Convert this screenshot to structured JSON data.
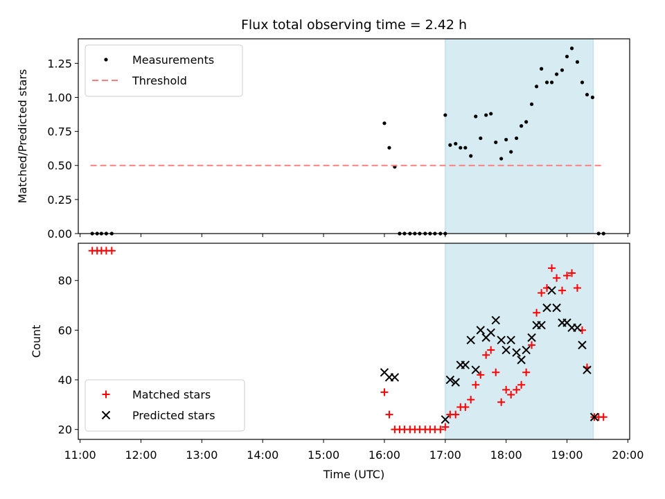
{
  "chart_data": {
    "type": "scatter",
    "title": "Flux total observing time = 2.42 h",
    "xlabel": "Time (UTC)",
    "x_tick_labels": [
      "11:00",
      "12:00",
      "13:00",
      "14:00",
      "15:00",
      "16:00",
      "17:00",
      "18:00",
      "19:00",
      "20:00"
    ],
    "x_ticks_hours": [
      11,
      12,
      13,
      14,
      15,
      16,
      17,
      18,
      19,
      20
    ],
    "xlim_hours": [
      10.97,
      20.03
    ],
    "shaded_span_hours": [
      17.0,
      19.43
    ],
    "shade_color": "#add8e6",
    "panels": [
      {
        "ylabel": "Matched/Predicted stars",
        "ylim": [
          0,
          1.43
        ],
        "y_ticks": [
          0.0,
          0.25,
          0.5,
          0.75,
          1.0,
          1.25
        ],
        "y_tick_labels": [
          "0.00",
          "0.25",
          "0.50",
          "0.75",
          "1.00",
          "1.25"
        ],
        "legend": {
          "position": "upper-left",
          "entries": [
            "Measurements",
            "Threshold"
          ]
        },
        "series": [
          {
            "name": "Measurements",
            "marker": "dot",
            "color": "#000000",
            "points": [
              [
                11.2,
                0
              ],
              [
                11.28,
                0
              ],
              [
                11.35,
                0
              ],
              [
                11.43,
                0
              ],
              [
                11.52,
                0
              ],
              [
                16.0,
                0.81
              ],
              [
                16.08,
                0.63
              ],
              [
                16.17,
                0.49
              ],
              [
                16.25,
                0
              ],
              [
                16.33,
                0
              ],
              [
                16.42,
                0
              ],
              [
                16.5,
                0
              ],
              [
                16.58,
                0
              ],
              [
                16.67,
                0
              ],
              [
                16.75,
                0
              ],
              [
                16.83,
                0
              ],
              [
                16.92,
                0
              ],
              [
                17.0,
                0
              ],
              [
                17.0,
                0.87
              ],
              [
                17.08,
                0.65
              ],
              [
                17.17,
                0.66
              ],
              [
                17.25,
                0.63
              ],
              [
                17.33,
                0.63
              ],
              [
                17.42,
                0.57
              ],
              [
                17.5,
                0.86
              ],
              [
                17.58,
                0.7
              ],
              [
                17.67,
                0.87
              ],
              [
                17.75,
                0.88
              ],
              [
                17.83,
                0.67
              ],
              [
                17.92,
                0.55
              ],
              [
                18.0,
                0.69
              ],
              [
                18.08,
                0.6
              ],
              [
                18.17,
                0.7
              ],
              [
                18.25,
                0.79
              ],
              [
                18.33,
                0.82
              ],
              [
                18.42,
                0.95
              ],
              [
                18.5,
                1.08
              ],
              [
                18.58,
                1.21
              ],
              [
                18.67,
                1.11
              ],
              [
                18.75,
                1.11
              ],
              [
                18.83,
                1.17
              ],
              [
                18.92,
                1.2
              ],
              [
                19.0,
                1.3
              ],
              [
                19.08,
                1.36
              ],
              [
                19.17,
                1.26
              ],
              [
                19.25,
                1.11
              ],
              [
                19.33,
                1.02
              ],
              [
                19.42,
                1.0
              ],
              [
                19.52,
                0
              ],
              [
                19.6,
                0
              ]
            ]
          },
          {
            "name": "Threshold",
            "marker": "dashed-line",
            "color": "#ff7f7f",
            "points": [
              [
                11.17,
                0.5
              ],
              [
                19.6,
                0.5
              ]
            ]
          }
        ]
      },
      {
        "ylabel": "Count",
        "ylim": [
          16,
          95
        ],
        "y_ticks": [
          20,
          40,
          60,
          80
        ],
        "y_tick_labels": [
          "20",
          "40",
          "60",
          "80"
        ],
        "legend": {
          "position": "lower-left",
          "entries": [
            "Matched stars",
            "Predicted stars"
          ]
        },
        "series": [
          {
            "name": "Matched stars",
            "marker": "plus",
            "color": "#ff0000",
            "points": [
              [
                11.2,
                92
              ],
              [
                11.28,
                92
              ],
              [
                11.35,
                92
              ],
              [
                11.43,
                92
              ],
              [
                11.52,
                92
              ],
              [
                16.0,
                35
              ],
              [
                16.08,
                26
              ],
              [
                16.17,
                20
              ],
              [
                16.25,
                20
              ],
              [
                16.33,
                20
              ],
              [
                16.42,
                20
              ],
              [
                16.5,
                20
              ],
              [
                16.58,
                20
              ],
              [
                16.67,
                20
              ],
              [
                16.75,
                20
              ],
              [
                16.83,
                20
              ],
              [
                16.92,
                20
              ],
              [
                17.0,
                21
              ],
              [
                17.08,
                26
              ],
              [
                17.17,
                26
              ],
              [
                17.25,
                29
              ],
              [
                17.33,
                29
              ],
              [
                17.42,
                32
              ],
              [
                17.5,
                38
              ],
              [
                17.58,
                42
              ],
              [
                17.67,
                50
              ],
              [
                17.75,
                52
              ],
              [
                17.83,
                43
              ],
              [
                17.92,
                31
              ],
              [
                18.0,
                36
              ],
              [
                18.08,
                34
              ],
              [
                18.17,
                36
              ],
              [
                18.25,
                38
              ],
              [
                18.33,
                43
              ],
              [
                18.42,
                54
              ],
              [
                18.5,
                67
              ],
              [
                18.58,
                75
              ],
              [
                18.67,
                77
              ],
              [
                18.75,
                85
              ],
              [
                18.83,
                81
              ],
              [
                18.92,
                76
              ],
              [
                19.0,
                82
              ],
              [
                19.08,
                83
              ],
              [
                19.17,
                77
              ],
              [
                19.25,
                60
              ],
              [
                19.33,
                45
              ],
              [
                19.45,
                25
              ],
              [
                19.52,
                25
              ],
              [
                19.6,
                25
              ]
            ]
          },
          {
            "name": "Predicted stars",
            "marker": "x",
            "color": "#000000",
            "points": [
              [
                16.0,
                43
              ],
              [
                16.08,
                41
              ],
              [
                16.17,
                41
              ],
              [
                17.0,
                24
              ],
              [
                17.08,
                40
              ],
              [
                17.17,
                39
              ],
              [
                17.25,
                46
              ],
              [
                17.33,
                46
              ],
              [
                17.42,
                56
              ],
              [
                17.5,
                44
              ],
              [
                17.58,
                60
              ],
              [
                17.67,
                57
              ],
              [
                17.75,
                59
              ],
              [
                17.83,
                64
              ],
              [
                17.92,
                56
              ],
              [
                18.0,
                52
              ],
              [
                18.08,
                56
              ],
              [
                18.17,
                51
              ],
              [
                18.25,
                48
              ],
              [
                18.33,
                52
              ],
              [
                18.42,
                57
              ],
              [
                18.5,
                62
              ],
              [
                18.58,
                62
              ],
              [
                18.67,
                69
              ],
              [
                18.75,
                76
              ],
              [
                18.83,
                69
              ],
              [
                18.92,
                63
              ],
              [
                19.0,
                63
              ],
              [
                19.08,
                61
              ],
              [
                19.17,
                61
              ],
              [
                19.25,
                54
              ],
              [
                19.33,
                44
              ],
              [
                19.45,
                25
              ]
            ]
          }
        ]
      }
    ]
  }
}
